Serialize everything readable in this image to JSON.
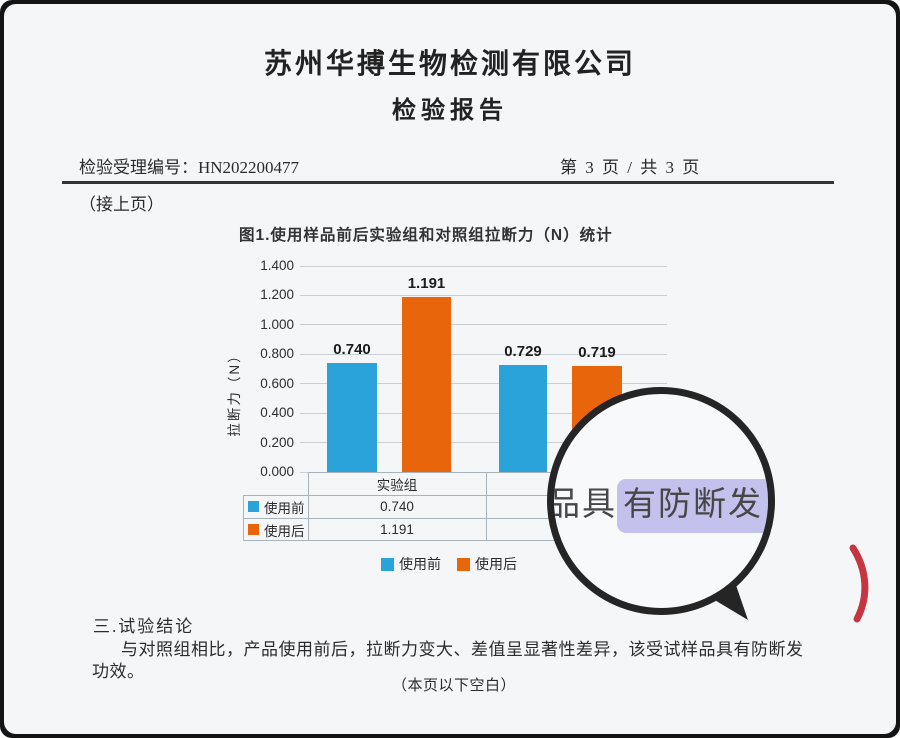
{
  "header": {
    "company": "苏州华搏生物检测有限公司",
    "report_title": "检验报告",
    "accept_no_label": "检验受理编号：",
    "accept_no": "HN202200477",
    "page_indicator": "第 3 页 / 共 3 页",
    "continued": "（接上页）"
  },
  "chart_data": {
    "type": "bar",
    "title": "图1.使用样品前后实验组和对照组拉断力（N）统计",
    "ylabel": "拉断力（N）",
    "ylim": [
      0,
      1.4
    ],
    "ytick_step": 0.2,
    "ytick_labels": [
      "0.000",
      "0.200",
      "0.400",
      "0.600",
      "0.800",
      "1.000",
      "1.200",
      "1.400"
    ],
    "categories": [
      "实验组",
      ""
    ],
    "series": [
      {
        "name": "使用前",
        "color": "#2aa3db",
        "values": [
          0.74,
          0.729
        ]
      },
      {
        "name": "使用后",
        "color": "#e8650c",
        "values": [
          1.191,
          0.719
        ]
      }
    ],
    "value_labels": [
      "0.740",
      "1.191",
      "0.729",
      "0.719"
    ],
    "legend_position": "bottom",
    "grid": true,
    "data_table": {
      "visible_column_header": "实验组",
      "rows": [
        {
          "label": "使用前",
          "visible_value": "0.740"
        },
        {
          "label": "使用后",
          "visible_value": "1.191"
        }
      ]
    }
  },
  "magnifier": {
    "text_prefix": "品具",
    "text_highlight": "有防断发"
  },
  "conclusion": {
    "heading": "三.试验结论",
    "line1": "与对照组相比，产品使用前后，拉断力变大、差值呈显著性差异，该受试样品具有防断发",
    "line2": "功效。",
    "footer": "（本页以下空白）"
  },
  "colors": {
    "bar_blue": "#2aa3db",
    "bar_orange": "#e8650c",
    "highlight_lavender": "#928ae0",
    "stamp_red": "#c12532",
    "frame_black": "#141414"
  }
}
